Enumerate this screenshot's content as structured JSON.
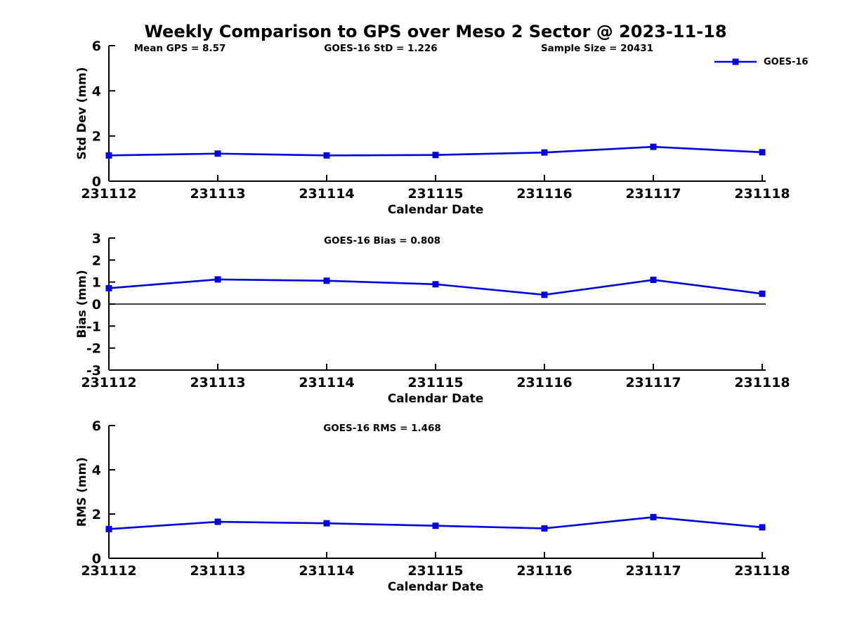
{
  "title": "Weekly Comparison to GPS over Meso 2 Sector @ 2023-11-18",
  "legend": {
    "label": "GOES-16"
  },
  "colors": {
    "line": "#0000e0",
    "axis": "#000000",
    "text": "#000000",
    "background": "#ffffff"
  },
  "chart_data": [
    {
      "type": "line",
      "panel": "std-dev",
      "annotations": [
        "Mean GPS = 8.57",
        "GOES-16 StD = 1.226",
        "Sample Size = 20431"
      ],
      "categories": [
        "231112",
        "231113",
        "231114",
        "231115",
        "231116",
        "231117",
        "231118"
      ],
      "series": [
        {
          "name": "GOES-16",
          "values": [
            1.14,
            1.22,
            1.14,
            1.16,
            1.27,
            1.52,
            1.28
          ]
        }
      ],
      "xlabel": "Calendar Date",
      "ylabel": "Std Dev (mm)",
      "ylim": [
        0,
        6
      ],
      "yticks": [
        0,
        2,
        4,
        6
      ],
      "zero_line": false,
      "grid": false,
      "legend_position": "top-right"
    },
    {
      "type": "line",
      "panel": "bias",
      "annotations": [
        "GOES-16 Bias  = 0.808"
      ],
      "categories": [
        "231112",
        "231113",
        "231114",
        "231115",
        "231116",
        "231117",
        "231118"
      ],
      "series": [
        {
          "name": "GOES-16",
          "values": [
            0.72,
            1.12,
            1.06,
            0.9,
            0.42,
            1.1,
            0.47
          ]
        }
      ],
      "xlabel": "Calendar Date",
      "ylabel": "Bias (mm)",
      "ylim": [
        -3,
        3
      ],
      "yticks": [
        -3,
        -2,
        -1,
        0,
        1,
        2,
        3
      ],
      "zero_line": true,
      "grid": false,
      "legend_position": "none"
    },
    {
      "type": "line",
      "panel": "rms",
      "annotations": [
        "GOES-16 RMS = 1.468"
      ],
      "categories": [
        "231112",
        "231113",
        "231114",
        "231115",
        "231116",
        "231117",
        "231118"
      ],
      "series": [
        {
          "name": "GOES-16",
          "values": [
            1.32,
            1.65,
            1.58,
            1.47,
            1.35,
            1.86,
            1.4
          ]
        }
      ],
      "xlabel": "Calendar Date",
      "ylabel": "RMS (mm)",
      "ylim": [
        0,
        6
      ],
      "yticks": [
        0,
        2,
        4,
        6
      ],
      "zero_line": false,
      "grid": false,
      "legend_position": "none"
    }
  ]
}
